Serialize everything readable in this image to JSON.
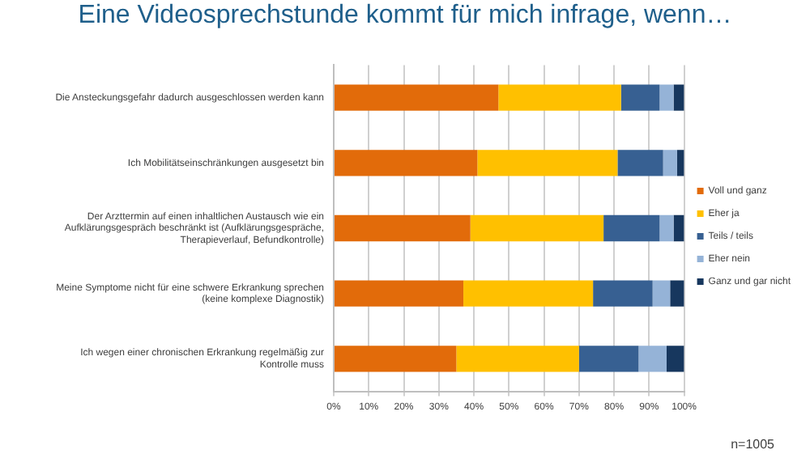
{
  "chart_data": {
    "type": "bar",
    "orientation": "horizontal",
    "stacked": true,
    "title": "Eine Videosprechstunde kommt für mich infrage, wenn…",
    "categories": [
      "Die Ansteckungsgefahr dadurch ausgeschlossen werden kann",
      "Ich Mobilitätseinschränkungen ausgesetzt bin",
      "Der Arzttermin auf einen inhaltlichen Austausch wie ein\nAufklärungsgespräch beschränkt ist (Aufklärungsgespräche,\nTherapieverlauf, Befundkontrolle)",
      "Meine Symptome nicht für eine schwere Erkrankung sprechen\n(keine komplexe Diagnostik)",
      "Ich wegen einer chronischen Erkrankung regelmäßig zur\nKontrolle muss"
    ],
    "series": [
      {
        "name": "Voll und ganz",
        "color": "#e26b0a",
        "values": [
          47,
          41,
          39,
          37,
          35
        ]
      },
      {
        "name": "Eher ja",
        "color": "#ffc000",
        "values": [
          35,
          40,
          38,
          37,
          35
        ]
      },
      {
        "name": "Teils / teils",
        "color": "#376092",
        "values": [
          11,
          13,
          16,
          17,
          17
        ]
      },
      {
        "name": "Eher nein",
        "color": "#95b3d7",
        "values": [
          4,
          4,
          4,
          5,
          8
        ]
      },
      {
        "name": "Ganz und gar nicht",
        "color": "#17375e",
        "values": [
          3,
          2,
          3,
          4,
          5
        ]
      }
    ],
    "xlim": [
      0,
      100
    ],
    "xticks": [
      {
        "value": 0,
        "label": "0%"
      },
      {
        "value": 10,
        "label": "10%"
      },
      {
        "value": 20,
        "label": "20%"
      },
      {
        "value": 30,
        "label": "30%"
      },
      {
        "value": 40,
        "label": "40%"
      },
      {
        "value": 50,
        "label": "50%"
      },
      {
        "value": 60,
        "label": "60%"
      },
      {
        "value": 70,
        "label": "70%"
      },
      {
        "value": 80,
        "label": "80%"
      },
      {
        "value": 90,
        "label": "90%"
      },
      {
        "value": 100,
        "label": "100%"
      }
    ],
    "grid": "x",
    "legend": "right",
    "annotations": [
      "n=1005"
    ]
  }
}
